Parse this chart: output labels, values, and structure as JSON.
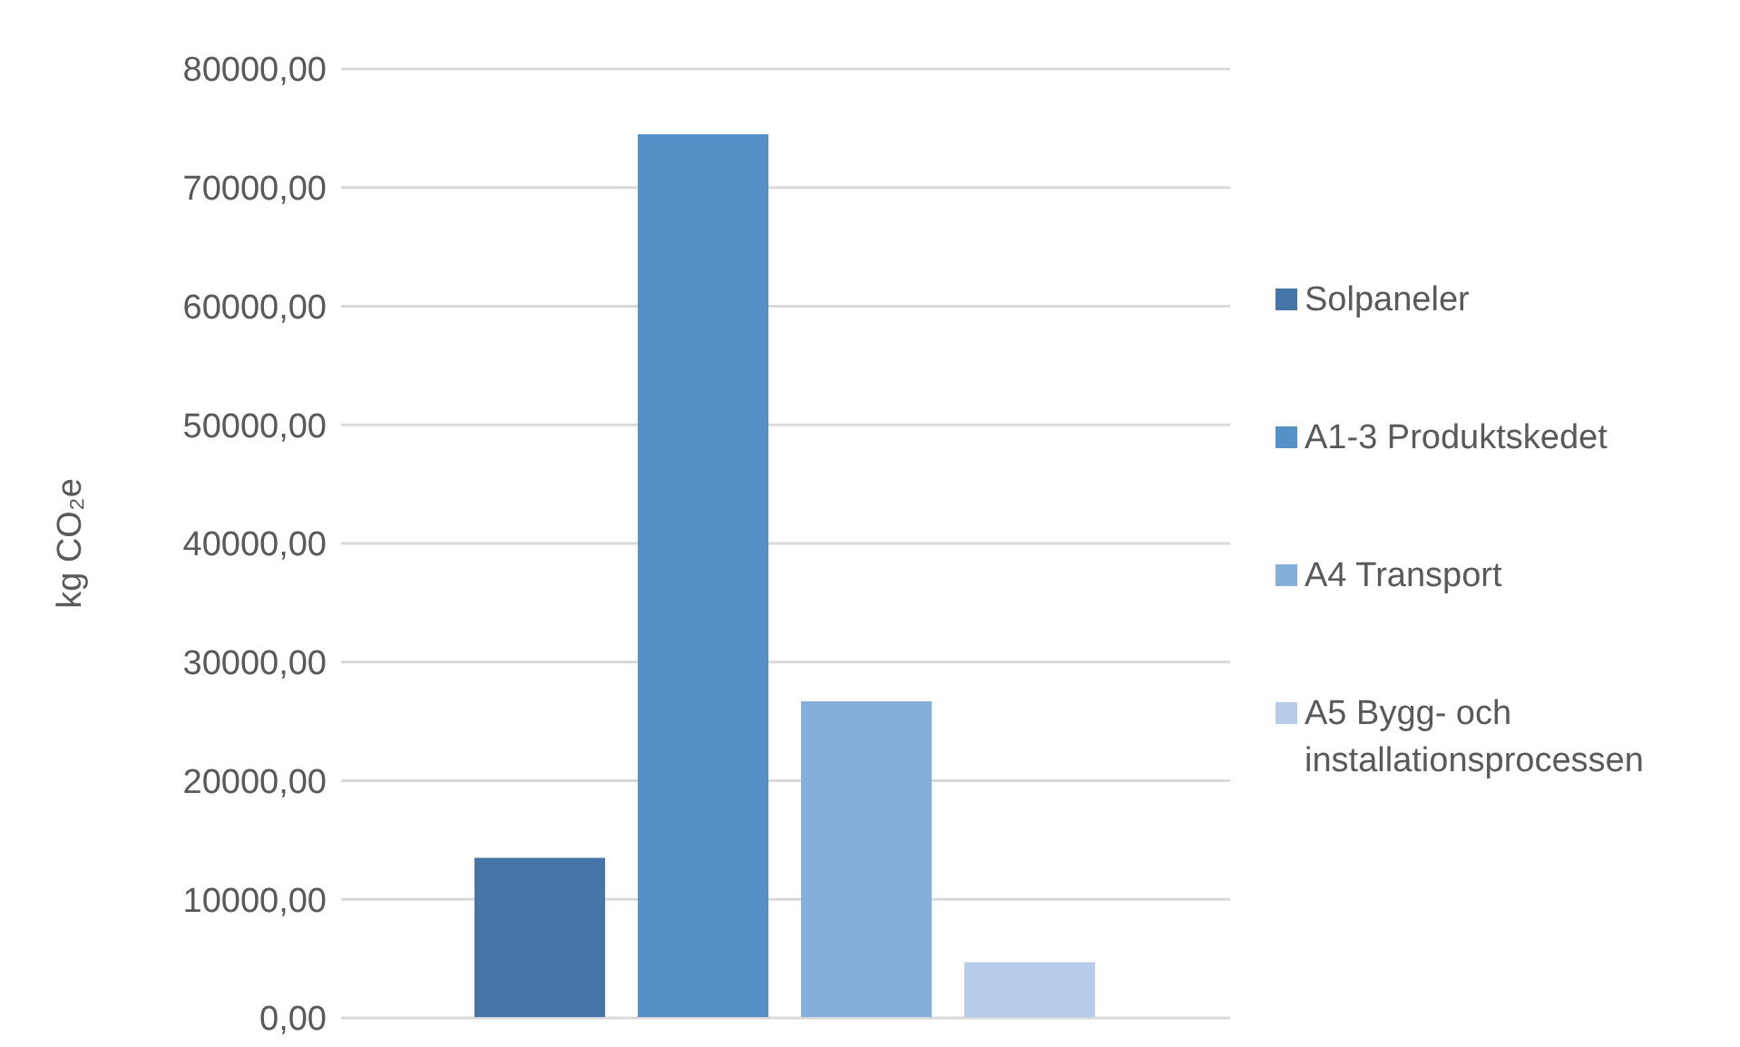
{
  "chart_data": {
    "type": "bar",
    "ylabel": "kg CO₂e",
    "categories": [
      null
    ],
    "series": [
      {
        "name": "Solpaneler",
        "color": "#4676a7",
        "values": [
          13500
        ]
      },
      {
        "name": "A1-3 Produktskedet",
        "color": "#5591c7",
        "values": [
          74500
        ]
      },
      {
        "name": "A4 Transport",
        "color": "#85aedb",
        "values": [
          26700
        ]
      },
      {
        "name": "A5 Bygg- och installationsprocessen",
        "color": "#b7cce8",
        "values": [
          4700
        ]
      }
    ],
    "ylim": [
      0,
      80000
    ],
    "yticks": [
      {
        "value": 0,
        "label": "0,00"
      },
      {
        "value": 10000,
        "label": "10000,00"
      },
      {
        "value": 20000,
        "label": "20000,00"
      },
      {
        "value": 30000,
        "label": "30000,00"
      },
      {
        "value": 40000,
        "label": "40000,00"
      },
      {
        "value": 50000,
        "label": "50000,00"
      },
      {
        "value": 60000,
        "label": "60000,00"
      },
      {
        "value": 70000,
        "label": "70000,00"
      },
      {
        "value": 80000,
        "label": "80000,00"
      }
    ],
    "grid": "y",
    "legend": "right"
  }
}
